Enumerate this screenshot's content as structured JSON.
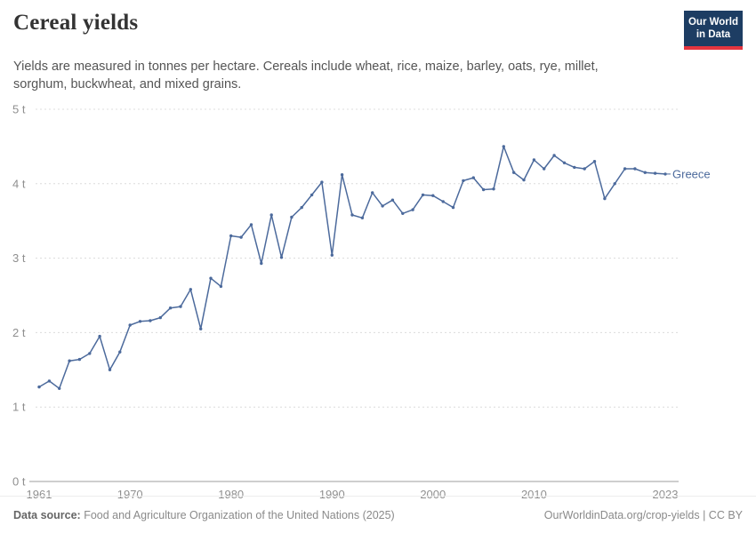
{
  "header": {
    "title": "Cereal yields",
    "subtitle": "Yields are measured in tonnes per hectare. Cereals include wheat, rice, maize, barley, oats, rye, millet, sorghum, buckwheat, and mixed grains.",
    "logo": {
      "line1": "Our World",
      "line2": "in Data",
      "bg_color": "#1d3d63",
      "accent_color": "#e5353f"
    }
  },
  "chart_data": {
    "type": "line",
    "title": "Cereal yields",
    "xlabel": "",
    "ylabel": "",
    "xlim": [
      1961,
      2023
    ],
    "ylim": [
      0,
      5
    ],
    "yticks": [
      0,
      1,
      2,
      3,
      4,
      5
    ],
    "ytick_labels": [
      "0 t",
      "1 t",
      "2 t",
      "3 t",
      "4 t",
      "5 t"
    ],
    "xticks": [
      1961,
      1970,
      1980,
      1990,
      2000,
      2010,
      2023
    ],
    "grid": "horizontal-dashed",
    "legend_position": "end-of-line-label",
    "series": [
      {
        "name": "Greece",
        "color": "#4c6a9c",
        "x": [
          1961,
          1962,
          1963,
          1964,
          1965,
          1966,
          1967,
          1968,
          1969,
          1970,
          1971,
          1972,
          1973,
          1974,
          1975,
          1976,
          1977,
          1978,
          1979,
          1980,
          1981,
          1982,
          1983,
          1984,
          1985,
          1986,
          1987,
          1988,
          1989,
          1990,
          1991,
          1992,
          1993,
          1994,
          1995,
          1996,
          1997,
          1998,
          1999,
          2000,
          2001,
          2002,
          2003,
          2004,
          2005,
          2006,
          2007,
          2008,
          2009,
          2010,
          2011,
          2012,
          2013,
          2014,
          2015,
          2016,
          2017,
          2018,
          2019,
          2020,
          2021,
          2022,
          2023
        ],
        "values": [
          1.27,
          1.35,
          1.25,
          1.62,
          1.64,
          1.72,
          1.95,
          1.5,
          1.74,
          2.1,
          2.15,
          2.16,
          2.2,
          2.33,
          2.35,
          2.58,
          2.05,
          2.73,
          2.62,
          3.3,
          3.28,
          3.45,
          2.93,
          3.58,
          3.01,
          3.55,
          3.68,
          3.85,
          4.02,
          3.04,
          4.12,
          3.58,
          3.54,
          3.88,
          3.7,
          3.78,
          3.6,
          3.65,
          3.85,
          3.84,
          3.76,
          3.68,
          4.04,
          4.08,
          3.92,
          3.93,
          4.5,
          4.15,
          4.05,
          4.32,
          4.2,
          4.38,
          4.28,
          4.22,
          4.2,
          4.3,
          3.8,
          4.0,
          4.2,
          4.2,
          4.15,
          4.14,
          4.13
        ]
      }
    ]
  },
  "footer": {
    "source_label": "Data source:",
    "source_text": " Food and Agriculture Organization of the United Nations (2025)",
    "credit": "OurWorldinData.org/crop-yields | CC BY"
  }
}
